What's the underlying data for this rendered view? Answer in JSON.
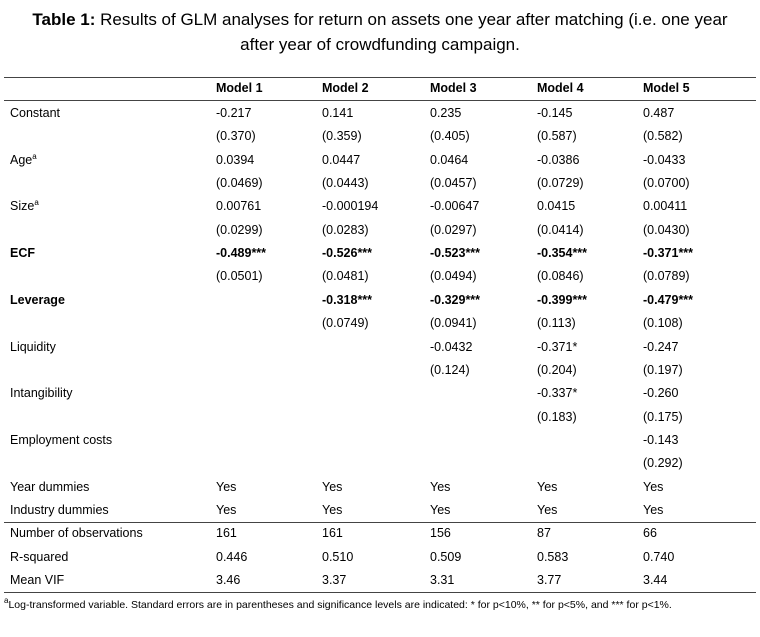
{
  "title": {
    "label": "Table 1:",
    "line1": "Results of GLM analyses for return on assets one year after matching (i.e. one year",
    "line2": "after year of crowdfunding campaign."
  },
  "table": {
    "columns": [
      "Model 1",
      "Model 2",
      "Model 3",
      "Model 4",
      "Model 5"
    ],
    "rows": [
      {
        "label": "Constant",
        "cells": [
          "-0.217",
          "0.141",
          "0.235",
          "-0.145",
          "0.487"
        ]
      },
      {
        "label": null,
        "cells": [
          "(0.370)",
          "(0.359)",
          "(0.405)",
          "(0.587)",
          "(0.582)"
        ]
      },
      {
        "label": "Age",
        "sup": "a",
        "cells": [
          "0.0394",
          "0.0447",
          "0.0464",
          "-0.0386",
          "-0.0433"
        ]
      },
      {
        "label": null,
        "cells": [
          "(0.0469)",
          "(0.0443)",
          "(0.0457)",
          "(0.0729)",
          "(0.0700)"
        ]
      },
      {
        "label": "Size",
        "sup": "a",
        "cells": [
          "0.00761",
          "-0.000194",
          "-0.00647",
          "0.0415",
          "0.00411"
        ]
      },
      {
        "label": null,
        "cells": [
          "(0.0299)",
          "(0.0283)",
          "(0.0297)",
          "(0.0414)",
          "(0.0430)"
        ]
      },
      {
        "label": "ECF",
        "bold": true,
        "cells": [
          "-0.489***",
          "-0.526***",
          "-0.523***",
          "-0.354***",
          "-0.371***"
        ]
      },
      {
        "label": null,
        "cells": [
          "(0.0501)",
          "(0.0481)",
          "(0.0494)",
          "(0.0846)",
          "(0.0789)"
        ]
      },
      {
        "label": "Leverage",
        "bold": true,
        "cells": [
          null,
          "-0.318***",
          "-0.329***",
          "-0.399***",
          "-0.479***"
        ]
      },
      {
        "label": null,
        "cells": [
          null,
          "(0.0749)",
          "(0.0941)",
          "(0.113)",
          "(0.108)"
        ]
      },
      {
        "label": "Liquidity",
        "cells": [
          null,
          null,
          "-0.0432",
          "-0.371*",
          "-0.247"
        ]
      },
      {
        "label": null,
        "cells": [
          null,
          null,
          "(0.124)",
          "(0.204)",
          "(0.197)"
        ]
      },
      {
        "label": "Intangibility",
        "cells": [
          null,
          null,
          null,
          "-0.337*",
          "-0.260"
        ]
      },
      {
        "label": null,
        "cells": [
          null,
          null,
          null,
          "(0.183)",
          "(0.175)"
        ]
      },
      {
        "label": "Employment costs",
        "cells": [
          null,
          null,
          null,
          null,
          "-0.143"
        ]
      },
      {
        "label": null,
        "cells": [
          null,
          null,
          null,
          null,
          "(0.292)"
        ]
      },
      {
        "label": "Year dummies",
        "cells": [
          "Yes",
          "Yes",
          "Yes",
          "Yes",
          "Yes"
        ]
      },
      {
        "label": "Industry dummies",
        "cells": [
          "Yes",
          "Yes",
          "Yes",
          "Yes",
          "Yes"
        ]
      }
    ],
    "stats_rows": [
      {
        "label": "Number of observations",
        "cells": [
          "161",
          "161",
          "156",
          "87",
          "66"
        ]
      },
      {
        "label": "R-squared",
        "cells": [
          "0.446",
          "0.510",
          "0.509",
          "0.583",
          "0.740"
        ]
      },
      {
        "label": "Mean VIF",
        "cells": [
          "3.46",
          "3.37",
          "3.31",
          "3.77",
          "3.44"
        ]
      }
    ]
  },
  "footnote": {
    "sup": "a",
    "text": "Log-transformed variable. Standard errors are in parentheses and significance levels are indicated: * for p<10%, ** for p<5%, and *** for p<1%."
  }
}
